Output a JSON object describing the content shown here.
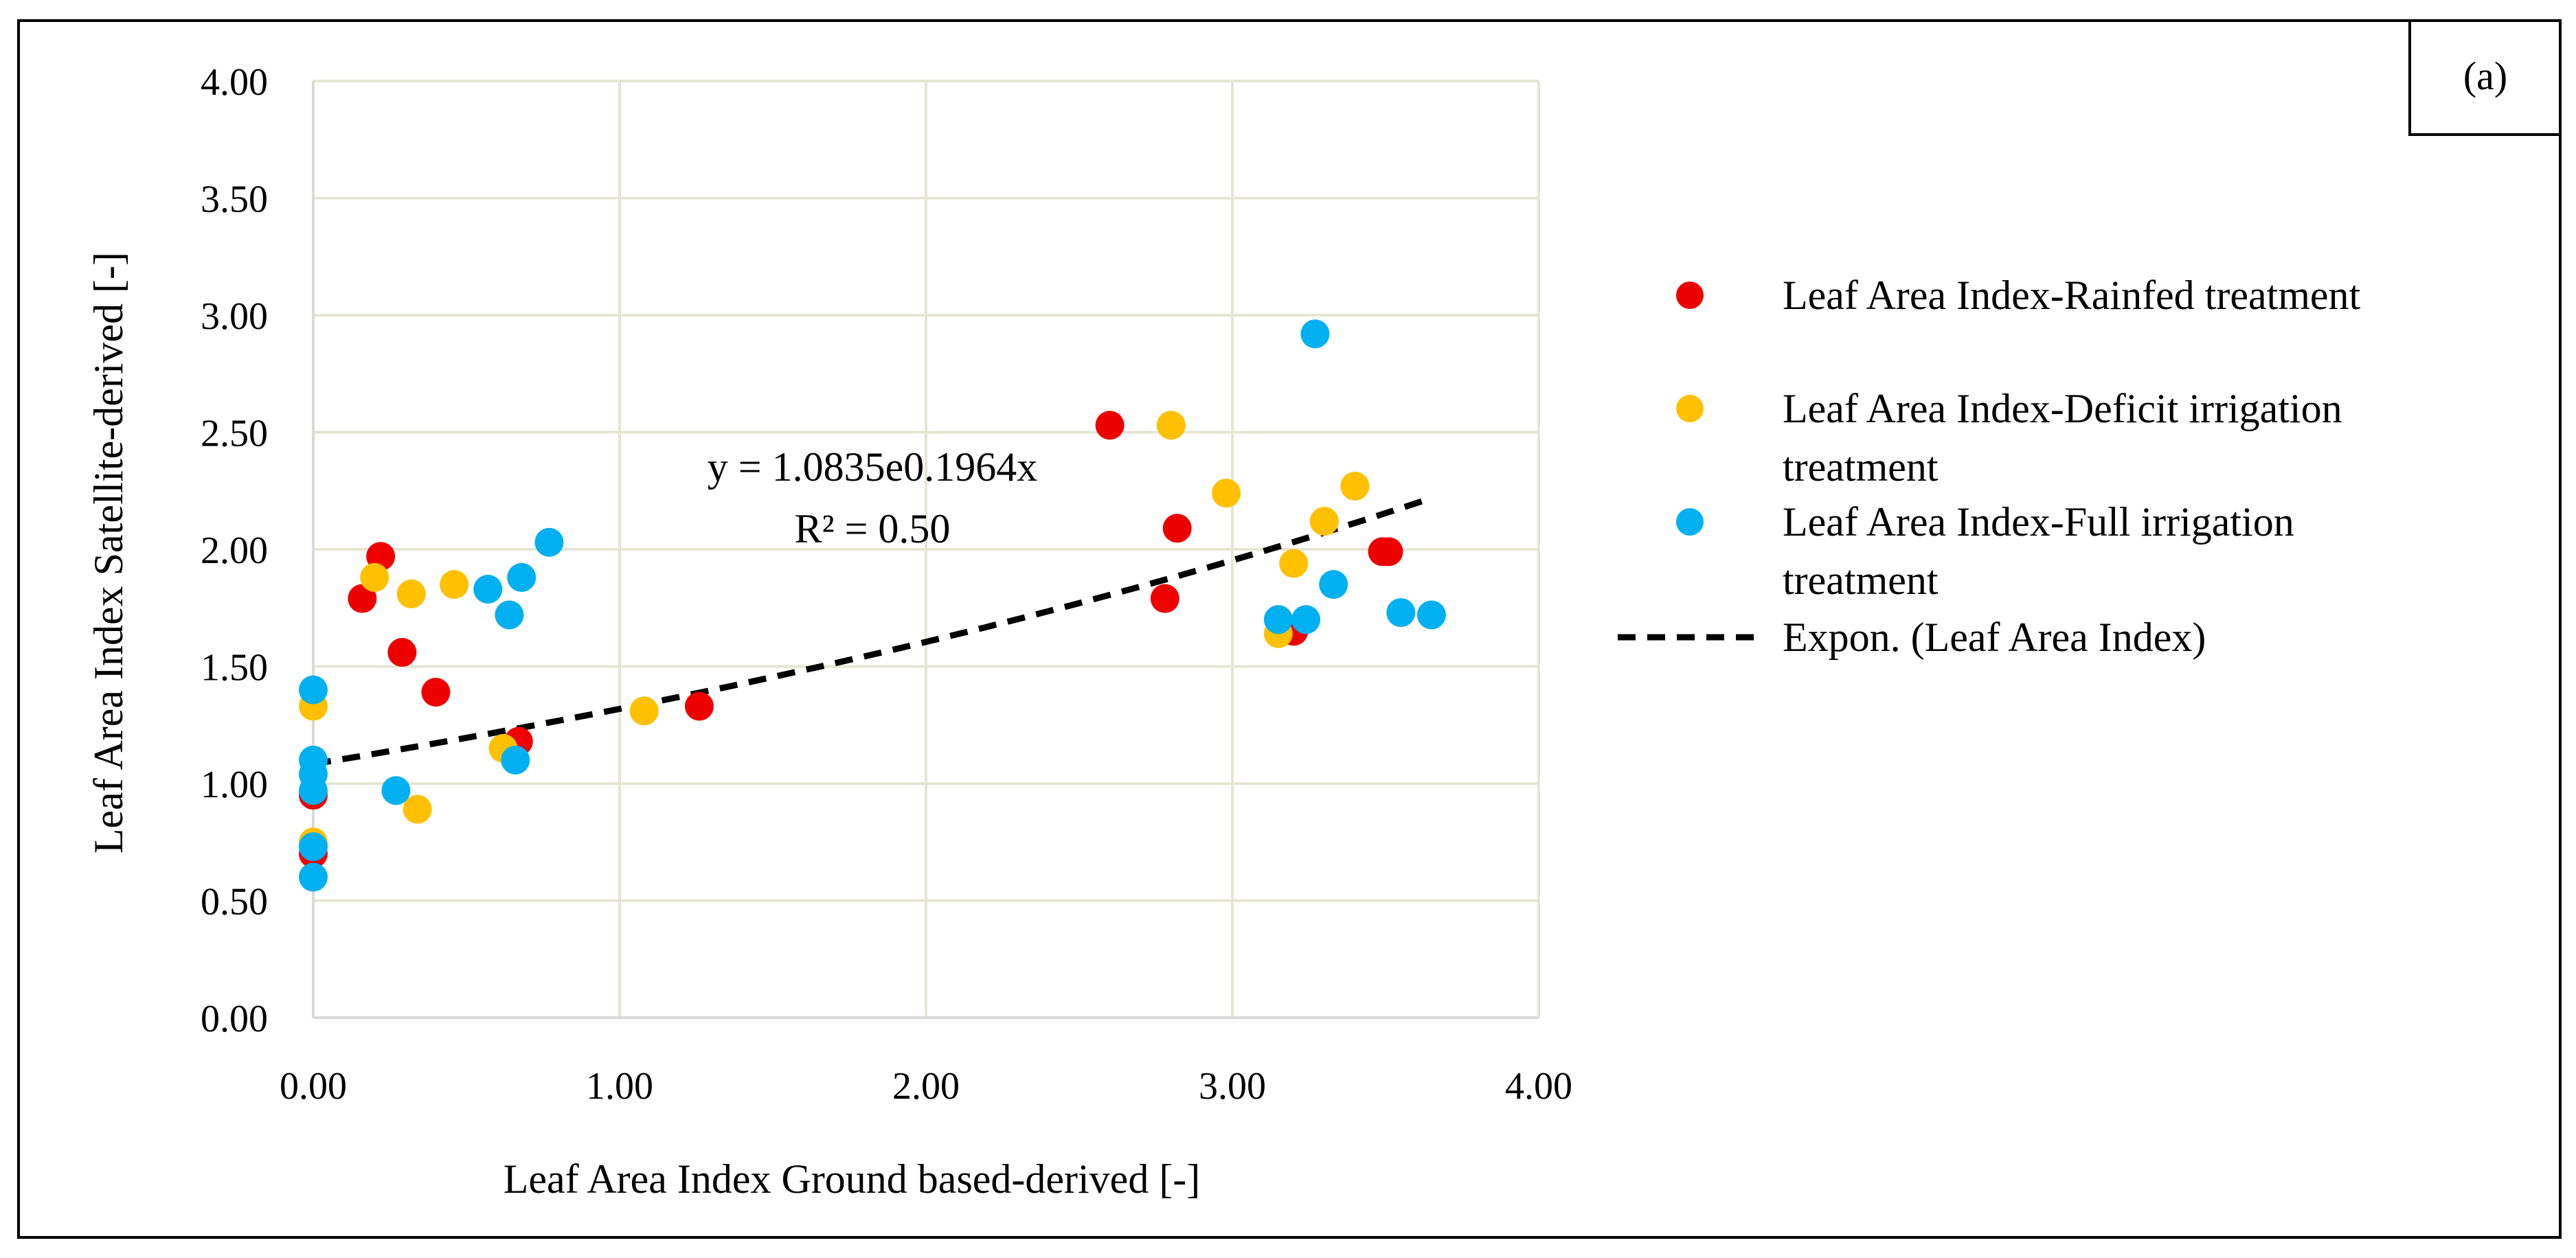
{
  "panel_label": "(a)",
  "colors": {
    "rainfed": "#ee0000",
    "deficit": "#ffc000",
    "full": "#00b0f0",
    "trend": "#000000",
    "grid": "#e5e5d3",
    "border": "#000000"
  },
  "chart_data": {
    "type": "scatter",
    "title": "",
    "xlabel": "Leaf Area Index Ground based-derived [-]",
    "ylabel": "Leaf Area Index Satellite-derived [-]",
    "xlim": [
      0,
      4
    ],
    "ylim": [
      0,
      4
    ],
    "x_ticks": [
      0,
      1,
      2,
      3,
      4
    ],
    "y_ticks": [
      0,
      0.5,
      1,
      1.5,
      2,
      2.5,
      3,
      3.5,
      4
    ],
    "x_tick_labels": [
      "0.00",
      "1.00",
      "2.00",
      "3.00",
      "4.00"
    ],
    "y_tick_labels": [
      "0.00",
      "0.50",
      "1.00",
      "1.50",
      "2.00",
      "2.50",
      "3.00",
      "3.50",
      "4.00"
    ],
    "grid": true,
    "legend_position": "right",
    "series": [
      {
        "name": "Leaf Area Index-Rainfed treatment",
        "name_lines": [
          "Leaf Area Index-Rainfed treatment"
        ],
        "color_key": "rainfed",
        "points": [
          [
            0.0,
            0.95
          ],
          [
            0.0,
            0.7
          ],
          [
            0.16,
            1.79
          ],
          [
            0.22,
            1.97
          ],
          [
            0.29,
            1.56
          ],
          [
            0.4,
            1.39
          ],
          [
            0.67,
            1.18
          ],
          [
            1.26,
            1.33
          ],
          [
            2.6,
            2.53
          ],
          [
            2.78,
            1.79
          ],
          [
            2.82,
            2.09
          ],
          [
            3.2,
            1.65
          ],
          [
            3.49,
            1.99
          ],
          [
            3.51,
            1.99
          ]
        ]
      },
      {
        "name": "Leaf Area Index-Deficit irrigation treatment",
        "name_lines": [
          "Leaf Area Index-Deficit irrigation",
          "treatment"
        ],
        "color_key": "deficit",
        "points": [
          [
            0.0,
            1.33
          ],
          [
            0.0,
            0.75
          ],
          [
            0.2,
            1.88
          ],
          [
            0.32,
            1.81
          ],
          [
            0.34,
            0.89
          ],
          [
            0.46,
            1.85
          ],
          [
            0.62,
            1.15
          ],
          [
            1.08,
            1.31
          ],
          [
            2.8,
            2.53
          ],
          [
            2.98,
            2.24
          ],
          [
            3.15,
            1.64
          ],
          [
            3.2,
            1.94
          ],
          [
            3.3,
            2.12
          ],
          [
            3.4,
            2.27
          ]
        ]
      },
      {
        "name": "Leaf Area Index-Full irrigation treatment",
        "name_lines": [
          "Leaf Area Index-Full irrigation",
          "treatment"
        ],
        "color_key": "full",
        "points": [
          [
            0.0,
            1.4
          ],
          [
            0.0,
            1.1
          ],
          [
            0.0,
            1.04
          ],
          [
            0.0,
            0.97
          ],
          [
            0.0,
            0.73
          ],
          [
            0.0,
            0.6
          ],
          [
            0.27,
            0.97
          ],
          [
            0.57,
            1.83
          ],
          [
            0.64,
            1.72
          ],
          [
            0.66,
            1.1
          ],
          [
            0.68,
            1.88
          ],
          [
            0.77,
            2.03
          ],
          [
            3.15,
            1.7
          ],
          [
            3.24,
            1.7
          ],
          [
            3.27,
            2.92
          ],
          [
            3.33,
            1.85
          ],
          [
            3.55,
            1.73
          ],
          [
            3.65,
            1.72
          ]
        ]
      }
    ],
    "trendline": {
      "name": "Expon. (Leaf Area Index)",
      "type": "exponential",
      "a": 1.0835,
      "b": 0.1964,
      "x_range": [
        0,
        3.65
      ],
      "equation_text": "y = 1.0835e0.1964x",
      "r2_text": "R² = 0.50"
    }
  }
}
